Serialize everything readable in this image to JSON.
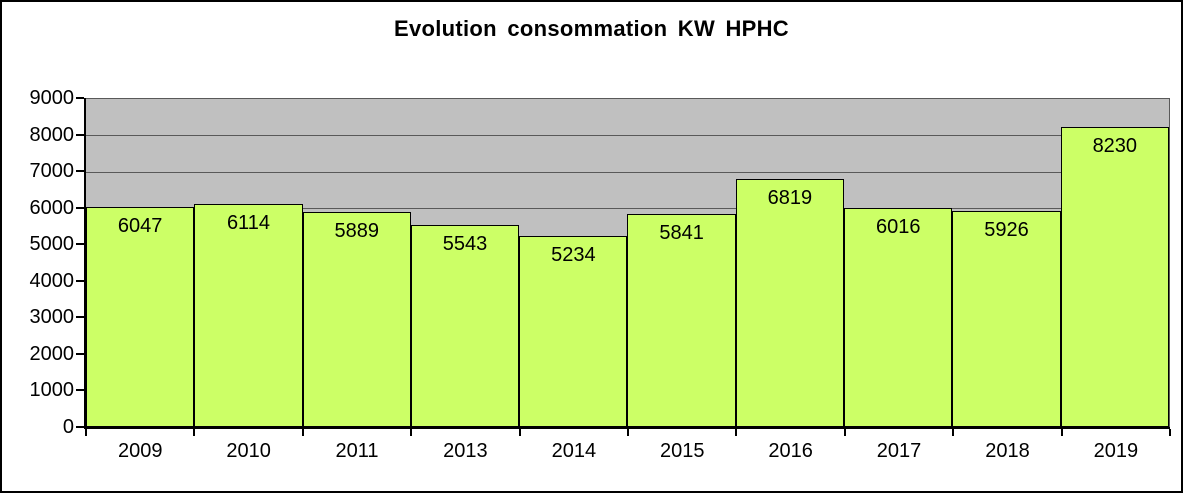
{
  "title": "Evolution consommation KW HPHC",
  "chart_data": {
    "type": "bar",
    "title": "Evolution consommation KW HPHC",
    "categories": [
      "2009",
      "2010",
      "2011",
      "2013",
      "2014",
      "2015",
      "2016",
      "2017",
      "2018",
      "2019"
    ],
    "values": [
      6047,
      6114,
      5889,
      5543,
      5234,
      5841,
      6819,
      6016,
      5926,
      8230
    ],
    "xlabel": "",
    "ylabel": "",
    "ylim": [
      0,
      9000
    ],
    "ytick_step": 1000,
    "ytick_labels": [
      "0",
      "1000",
      "2000",
      "3000",
      "4000",
      "5000",
      "6000",
      "7000",
      "8000",
      "9000"
    ],
    "grid": true,
    "legend": false,
    "data_labels_position": "inside-top",
    "colors": {
      "bar_fill": "#CCFF66",
      "bar_border": "#000000",
      "plot_background": "#C0C0C0",
      "gridline": "#595959",
      "axis": "#000000",
      "text": "#000000",
      "background": "#FFFFFF"
    }
  }
}
